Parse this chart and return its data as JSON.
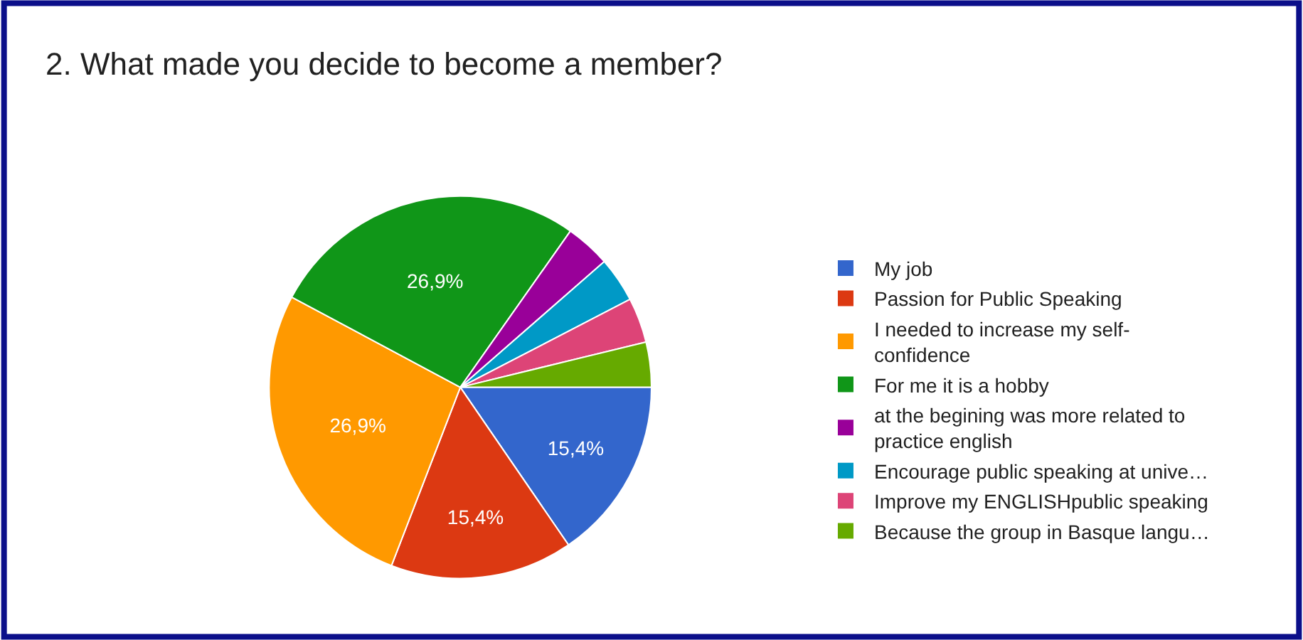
{
  "chart_data": {
    "type": "pie",
    "title": "2. What made you decide to become a member?",
    "categories": [
      "My job",
      "Passion for Public Speaking",
      "I needed to increase my self-confidence",
      "For me it is a hobby",
      "at the begining was more related to practice english",
      "Encourage public speaking at unive…",
      "Improve my ENGLISHpublic speaking",
      "Because the group in Basque langu…"
    ],
    "values": [
      15.4,
      15.4,
      26.9,
      26.9,
      3.8,
      3.8,
      3.8,
      3.8
    ],
    "colors": [
      "#3366cc",
      "#dc3912",
      "#ff9900",
      "#109618",
      "#990099",
      "#0099c6",
      "#dd4477",
      "#66aa00"
    ],
    "value_labels": [
      "15,4%",
      "15,4%",
      "26,9%",
      "26,9%",
      null,
      null,
      null,
      null
    ],
    "legend": "right"
  }
}
